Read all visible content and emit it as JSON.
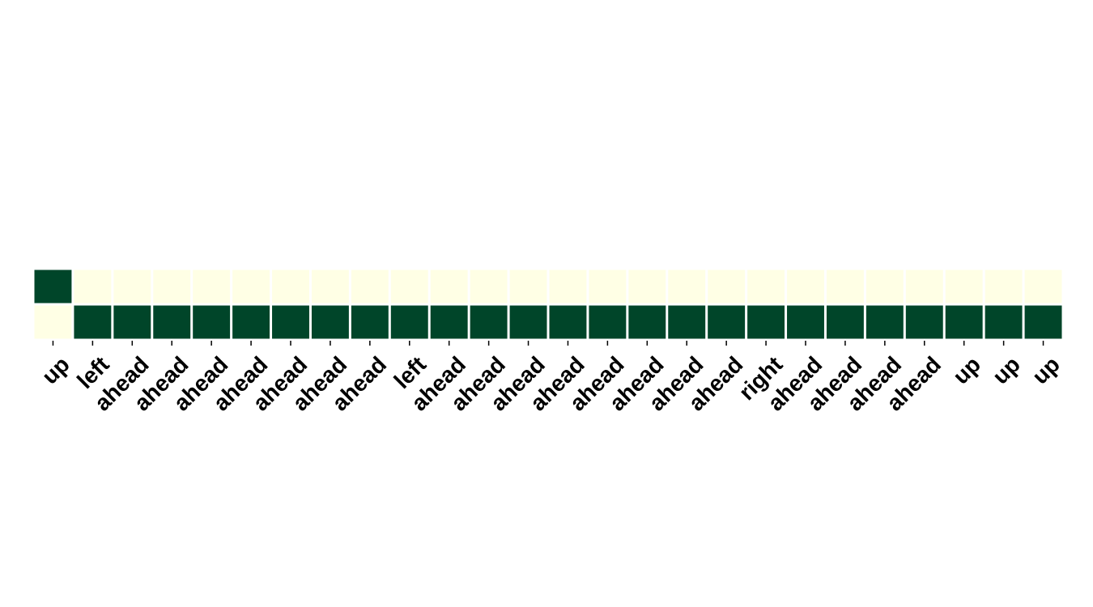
{
  "chart_data": {
    "type": "heatmap",
    "title": "",
    "xlabel": "",
    "ylabel": "",
    "categories": [
      "up",
      "left",
      "ahead",
      "ahead",
      "ahead",
      "ahead",
      "ahead",
      "ahead",
      "ahead",
      "left",
      "ahead",
      "ahead",
      "ahead",
      "ahead",
      "ahead",
      "ahead",
      "ahead",
      "ahead",
      "right",
      "ahead",
      "ahead",
      "ahead",
      "ahead",
      "up",
      "up",
      "up"
    ],
    "rows": [
      {
        "values": [
          1,
          0,
          0,
          0,
          0,
          0,
          0,
          0,
          0,
          0,
          0,
          0,
          0,
          0,
          0,
          0,
          0,
          0,
          0,
          0,
          0,
          0,
          0,
          0,
          0,
          0
        ]
      },
      {
        "values": [
          0,
          1,
          1,
          1,
          1,
          1,
          1,
          1,
          1,
          1,
          1,
          1,
          1,
          1,
          1,
          1,
          1,
          1,
          1,
          1,
          1,
          1,
          1,
          1,
          1,
          1
        ]
      }
    ],
    "colormap": {
      "low": "#ffffe5",
      "high": "#004529"
    },
    "grid": false,
    "legend": "none"
  }
}
